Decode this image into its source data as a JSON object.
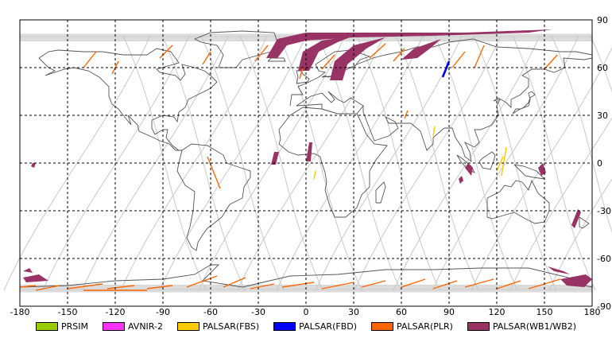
{
  "x_ticks": [
    "-180",
    "-150",
    "-120",
    "-90",
    "-60",
    "-30",
    "0",
    "30",
    "60",
    "90",
    "120",
    "150",
    "180"
  ],
  "y_ticks": [
    "90",
    "60",
    "30",
    "0",
    "-30",
    "-60",
    "-90"
  ],
  "legend": [
    {
      "label": "PRSIM",
      "color": "#99cc00"
    },
    {
      "label": "AVNIR-2",
      "color": "#ff33ff"
    },
    {
      "label": "PALSAR(FBS)",
      "color": "#ffcc00"
    },
    {
      "label": "PALSAR(FBD)",
      "color": "#0000ff"
    },
    {
      "label": "PALSAR(PLR)",
      "color": "#ff6600"
    },
    {
      "label": "PALSAR(WB1/WB2)",
      "color": "#993366"
    }
  ],
  "colors": {
    "orbit": "#c8c8c8",
    "coast": "#555555",
    "grid": "#000000",
    "fbs": "#ffcc00",
    "fbd": "#0000ff",
    "plr": "#ff6600",
    "wb": "#993366"
  }
}
